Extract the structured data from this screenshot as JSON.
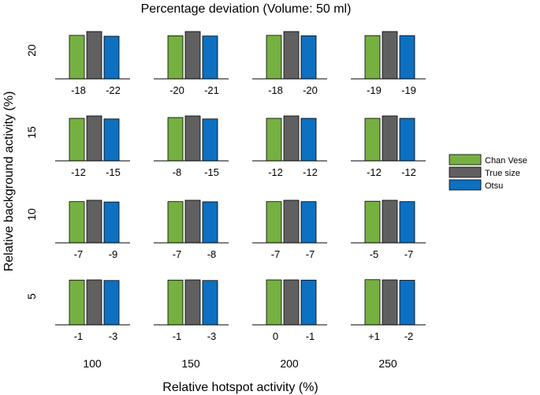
{
  "chart_data": {
    "type": "bar",
    "title": "Percentage deviation (Volume: 50 ml)",
    "xlabel": "Relative hotspot activity (%)",
    "ylabel": "Relative background activity (%)",
    "columns": [
      "100",
      "150",
      "200",
      "250"
    ],
    "rows": [
      "20",
      "15",
      "10",
      "5"
    ],
    "grid": false,
    "legend_position": "right",
    "series": [
      {
        "name": "Chan Vese",
        "color": "#76b041"
      },
      {
        "name": "True size",
        "color": "#606060"
      },
      {
        "name": "Otsu",
        "color": "#0d70c0"
      }
    ],
    "true_size_values": {
      "20": 100,
      "15": 100,
      "10": 100,
      "5": 100
    },
    "cells": [
      [
        {
          "chan_vese": -18,
          "otsu": -22,
          "chan_vese_label": "-18",
          "otsu_label": "-22"
        },
        {
          "chan_vese": -20,
          "otsu": -21,
          "chan_vese_label": "-20",
          "otsu_label": "-21"
        },
        {
          "chan_vese": -18,
          "otsu": -20,
          "chan_vese_label": "-18",
          "otsu_label": "-20"
        },
        {
          "chan_vese": -19,
          "otsu": -19,
          "chan_vese_label": "-19",
          "otsu_label": "-19"
        }
      ],
      [
        {
          "chan_vese": -12,
          "otsu": -15,
          "chan_vese_label": "-12",
          "otsu_label": "-15"
        },
        {
          "chan_vese": -8,
          "otsu": -15,
          "chan_vese_label": "-8",
          "otsu_label": "-15"
        },
        {
          "chan_vese": -12,
          "otsu": -12,
          "chan_vese_label": "-12",
          "otsu_label": "-12"
        },
        {
          "chan_vese": -12,
          "otsu": -12,
          "chan_vese_label": "-12",
          "otsu_label": "-12"
        }
      ],
      [
        {
          "chan_vese": -7,
          "otsu": -9,
          "chan_vese_label": "-7",
          "otsu_label": "-9"
        },
        {
          "chan_vese": -7,
          "otsu": -8,
          "chan_vese_label": "-7",
          "otsu_label": "-8"
        },
        {
          "chan_vese": -7,
          "otsu": -7,
          "chan_vese_label": "-7",
          "otsu_label": "-7"
        },
        {
          "chan_vese": -5,
          "otsu": -7,
          "chan_vese_label": "-5",
          "otsu_label": "-7"
        }
      ],
      [
        {
          "chan_vese": -1,
          "otsu": -3,
          "chan_vese_label": "-1",
          "otsu_label": "-3"
        },
        {
          "chan_vese": -1,
          "otsu": -3,
          "chan_vese_label": "-1",
          "otsu_label": "-3"
        },
        {
          "chan_vese": 0,
          "otsu": -1,
          "chan_vese_label": "0",
          "otsu_label": "-1"
        },
        {
          "chan_vese": 1,
          "otsu": -2,
          "chan_vese_label": "+1",
          "otsu_label": "-2"
        }
      ]
    ]
  }
}
